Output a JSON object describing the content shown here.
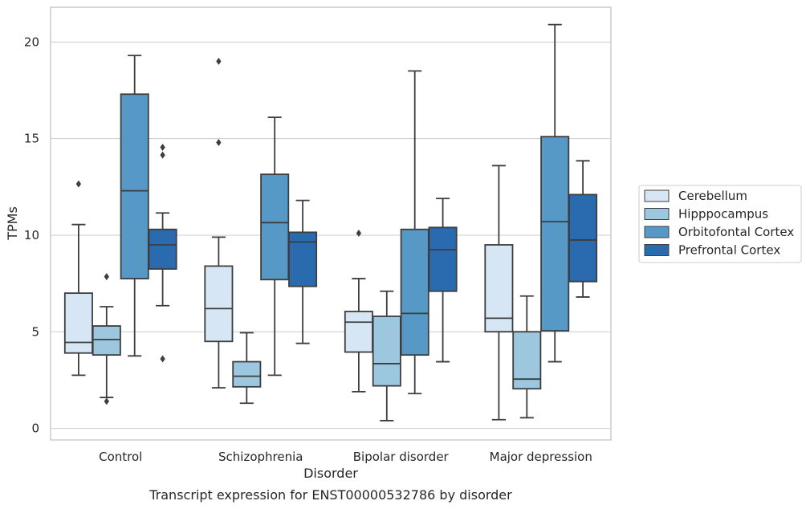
{
  "chart_data": {
    "type": "box",
    "title": "",
    "caption": "Transcript expression for ENST00000532786 by disorder",
    "xlabel": "Disorder",
    "ylabel": "TPMs",
    "ylim": [
      -0.6,
      21.8
    ],
    "yticks": [
      0,
      5,
      10,
      15,
      20
    ],
    "grid": "horizontal",
    "legend_position": "right",
    "categories": [
      "Control",
      "Schizophrenia",
      "Bipolar disorder",
      "Major depression"
    ],
    "series": [
      {
        "name": "Cerebellum",
        "color": "#d6e6f4",
        "boxes": [
          {
            "whisker_low": 2.75,
            "q1": 3.9,
            "median": 4.45,
            "q3": 7.0,
            "whisker_high": 10.55,
            "outliers": [
              12.65
            ]
          },
          {
            "whisker_low": 2.1,
            "q1": 4.5,
            "median": 6.2,
            "q3": 8.4,
            "whisker_high": 9.9,
            "outliers": [
              14.8,
              19.0
            ]
          },
          {
            "whisker_low": 1.9,
            "q1": 3.95,
            "median": 5.5,
            "q3": 6.05,
            "whisker_high": 7.75,
            "outliers": [
              10.1
            ]
          },
          {
            "whisker_low": 0.45,
            "q1": 5.0,
            "median": 5.7,
            "q3": 9.5,
            "whisker_high": 13.6,
            "outliers": []
          }
        ]
      },
      {
        "name": "Hipppocampus",
        "color": "#9dc6df",
        "boxes": [
          {
            "whisker_low": 1.6,
            "q1": 3.8,
            "median": 4.6,
            "q3": 5.3,
            "whisker_high": 6.3,
            "outliers": [
              1.4,
              7.85
            ]
          },
          {
            "whisker_low": 1.3,
            "q1": 2.15,
            "median": 2.7,
            "q3": 3.45,
            "whisker_high": 4.95,
            "outliers": []
          },
          {
            "whisker_low": 0.4,
            "q1": 2.2,
            "median": 3.35,
            "q3": 5.8,
            "whisker_high": 7.1,
            "outliers": []
          },
          {
            "whisker_low": 0.55,
            "q1": 2.05,
            "median": 2.55,
            "q3": 5.0,
            "whisker_high": 6.85,
            "outliers": []
          }
        ]
      },
      {
        "name": "Orbitofontal Cortex",
        "color": "#5699c6",
        "boxes": [
          {
            "whisker_low": 3.75,
            "q1": 7.75,
            "median": 12.3,
            "q3": 17.3,
            "whisker_high": 19.3,
            "outliers": []
          },
          {
            "whisker_low": 2.75,
            "q1": 7.7,
            "median": 10.65,
            "q3": 13.15,
            "whisker_high": 16.1,
            "outliers": []
          },
          {
            "whisker_low": 1.8,
            "q1": 3.8,
            "median": 5.95,
            "q3": 10.3,
            "whisker_high": 18.5,
            "outliers": []
          },
          {
            "whisker_low": 3.45,
            "q1": 5.05,
            "median": 10.7,
            "q3": 15.1,
            "whisker_high": 20.9,
            "outliers": []
          }
        ]
      },
      {
        "name": "Prefrontal Cortex",
        "color": "#2a6aae",
        "boxes": [
          {
            "whisker_low": 6.35,
            "q1": 8.25,
            "median": 9.5,
            "q3": 10.3,
            "whisker_high": 11.15,
            "outliers": [
              3.6,
              14.15,
              14.55
            ]
          },
          {
            "whisker_low": 4.4,
            "q1": 7.35,
            "median": 9.65,
            "q3": 10.15,
            "whisker_high": 11.8,
            "outliers": []
          },
          {
            "whisker_low": 3.45,
            "q1": 7.1,
            "median": 9.25,
            "q3": 10.4,
            "whisker_high": 11.9,
            "outliers": []
          },
          {
            "whisker_low": 6.8,
            "q1": 7.6,
            "median": 9.75,
            "q3": 12.1,
            "whisker_high": 13.85,
            "outliers": []
          }
        ]
      }
    ]
  }
}
